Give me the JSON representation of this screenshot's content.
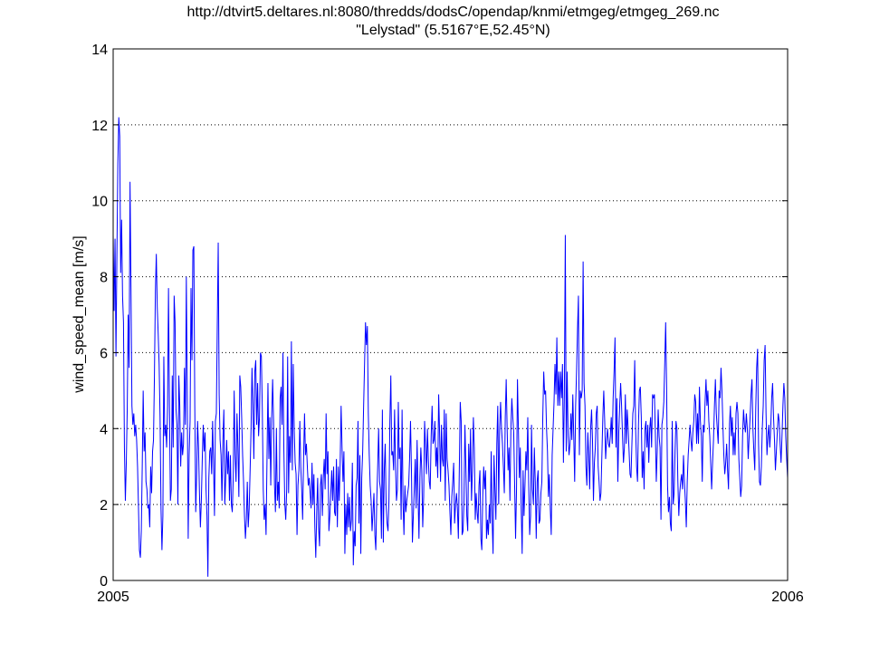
{
  "chart_data": {
    "type": "line",
    "title": "http://dtvirt5.deltares.nl:8080/thredds/dodsC/opendap/knmi/etmgeg/etmgeg_269.nc",
    "subtitle": "\"Lelystad\" (5.5167°E,52.45°N)",
    "xlabel": "",
    "ylabel": "wind_speed_mean [m/s]",
    "xlim": [
      "2005-01-01",
      "2006-01-01"
    ],
    "xticks": [
      "2005",
      "2006"
    ],
    "ylim": [
      0,
      14
    ],
    "yticks": [
      "0",
      "2",
      "4",
      "6",
      "8",
      "10",
      "12",
      "14"
    ],
    "grid": "y-dotted",
    "series_color": "#0000ff",
    "series": [
      {
        "x_start": "2005-01-01",
        "x_step": "1 day",
        "values": [
          9.1,
          7.1,
          9.0,
          5.9,
          8.6,
          11.0,
          12.2,
          11.7,
          8.1,
          9.5,
          7.5,
          6.8,
          3.5,
          2.1,
          3.1,
          4.5,
          7.0,
          5.6,
          10.5,
          7.7,
          4.6,
          4.1,
          4.4,
          3.8,
          4.1,
          3.7,
          3.0,
          1.9,
          0.8,
          0.6,
          1.3,
          3.0,
          5.0,
          3.4,
          3.9,
          2.6,
          2.4,
          1.9,
          2.0,
          1.4,
          3.0,
          2.3,
          3.4,
          3.7,
          5.4,
          7.6,
          8.6,
          7.2,
          6.5,
          5.7,
          4.3,
          1.9,
          0.8,
          1.7,
          5.9,
          3.8,
          4.1,
          3.5,
          4.6,
          7.7,
          4.6,
          2.1,
          2.4,
          5.4,
          3.5,
          7.5,
          6.8,
          4.5,
          4.1,
          2.0,
          5.4,
          4.6,
          3.0,
          3.9,
          3.3,
          3.6,
          5.6,
          4.1,
          8.0,
          4.8,
          1.1,
          3.3,
          4.2,
          7.7,
          5.8,
          8.7,
          8.8,
          4.6,
          1.8,
          2.8,
          4.2,
          3.5,
          2.3,
          1.4,
          2.1,
          3.2,
          4.1,
          3.4,
          3.9,
          2.4,
          1.7,
          0.1,
          2.7,
          3.4,
          3.5,
          2.8,
          4.2,
          3.1,
          1.7,
          4.2,
          4.4,
          6.7,
          8.9,
          4.9,
          3.7,
          3.3,
          2.1,
          3.7,
          4.5,
          2.0,
          2.7,
          3.7,
          2.8,
          3.4,
          2.1,
          3.3,
          2.0,
          1.8,
          2.7,
          5.0,
          3.3,
          2.6,
          4.4,
          3.5,
          2.2,
          5.4,
          5.1,
          4.3,
          3.3,
          2.6,
          1.7,
          1.1,
          1.6,
          2.6,
          1.4,
          1.9,
          2.9,
          4.0,
          5.6,
          4.6,
          3.2,
          5.5,
          5.8,
          4.1,
          5.2,
          3.8,
          4.3,
          6.0,
          5.9,
          4.5,
          2.4,
          1.6,
          2.0,
          1.2,
          3.2,
          5.2,
          3.2,
          4.3,
          2.5,
          4.3,
          5.3,
          4.2,
          2.5,
          1.8,
          4.0,
          2.1,
          2.6,
          1.9,
          4.8,
          5.1,
          4.1,
          6.0,
          3.4,
          2.0,
          1.6,
          2.4,
          5.9,
          2.3,
          3.8,
          3.1,
          6.3,
          2.9,
          5.7,
          4.0,
          3.1,
          2.8,
          1.2,
          2.5,
          2.9,
          4.2,
          3.0,
          2.4,
          1.6,
          3.2,
          4.4,
          3.3,
          3.6,
          3.0,
          2.5,
          2.7,
          2.3,
          1.9,
          3.1,
          2.0,
          2.8,
          1.4,
          0.6,
          1.8,
          2.7,
          1.4,
          0.9,
          2.5,
          2.8,
          1.7,
          2.7,
          3.2,
          2.4,
          4.4,
          2.8,
          3.4,
          1.3,
          1.7,
          2.3,
          2.9,
          2.1,
          3.0,
          1.8,
          1.7,
          3.2,
          1.4,
          3.0,
          2.1,
          3.1,
          4.6,
          3.5,
          2.6,
          3.4,
          0.7,
          2.0,
          1.2,
          2.3,
          1.4,
          2.2,
          1.3,
          1.6,
          3.1,
          0.4,
          1.3,
          0.9,
          2.5,
          2.7,
          4.2,
          1.5,
          3.3,
          0.7,
          2.7,
          3.4,
          4.6,
          5.7,
          6.8,
          6.2,
          6.7,
          4.4,
          3.3,
          2.5,
          2.1,
          1.3,
          1.8,
          2.3,
          1.2,
          0.8,
          2.1,
          3.0,
          4.0,
          2.6,
          2.4,
          1.1,
          4.5,
          1.0,
          2.9,
          3.6,
          2.0,
          1.5,
          1.3,
          2.1,
          4.2,
          5.4,
          3.3,
          3.4,
          2.9,
          4.5,
          3.0,
          2.1,
          2.4,
          4.7,
          3.2,
          3.5,
          1.6,
          4.5,
          2.1,
          1.2,
          2.5,
          1.8,
          2.1,
          2.3,
          2.5,
          3.2,
          4.2,
          2.9,
          1.0,
          1.7,
          2.4,
          3.2,
          1.9,
          3.7,
          2.3,
          1.1,
          2.7,
          3.5,
          2.9,
          1.4,
          2.2,
          4.2,
          3.5,
          2.8,
          4.0,
          3.2,
          2.6,
          2.4,
          3.8,
          4.6,
          3.6,
          3.7,
          4.2,
          3.0,
          3.5,
          2.7,
          4.9,
          3.9,
          2.6,
          4.1,
          3.2,
          3.0,
          4.5,
          2.1,
          4.4,
          3.2,
          2.9,
          2.5,
          1.8,
          1.2,
          2.2,
          2.6,
          3.1,
          1.5,
          2.0,
          2.3,
          1.9,
          1.1,
          2.9,
          4.7,
          4.2,
          1.2,
          1.3,
          2.1,
          4.1,
          3.0,
          1.7,
          1.3,
          3.6,
          2.6,
          4.0,
          2.1,
          2.9,
          4.3,
          3.5,
          1.6,
          2.3,
          1.8,
          1.5,
          2.5,
          2.9,
          1.1,
          0.8,
          2.2,
          3.0,
          2.4,
          2.9,
          1.1,
          1.6,
          1.2,
          2.0,
          1.5,
          3.4,
          1.6,
          0.7,
          3.3,
          2.4,
          1.6,
          3.6,
          4.6,
          2.0,
          4.0,
          4.7,
          4.0,
          3.6,
          3.0,
          2.3,
          4.3,
          5.3,
          4.0,
          2.9,
          3.5,
          2.1,
          4.0,
          4.8,
          4.3,
          3.9,
          2.5,
          1.1,
          2.4,
          5.3,
          4.0,
          2.7,
          3.5,
          1.9,
          0.7,
          2.9,
          1.7,
          2.5,
          3.4,
          2.9,
          4.3,
          2.5,
          1.2,
          1.7,
          4.1,
          2.4,
          2.0,
          3.5,
          2.6,
          1.1,
          2.6,
          2.9,
          1.5,
          1.6,
          2.3,
          2.6,
          4.3,
          5.5,
          4.9,
          5.0,
          4.0,
          3.4,
          2.2,
          2.8,
          1.9,
          1.2,
          3.3,
          4.0,
          4.7,
          5.7,
          4.9,
          6.4,
          4.6,
          5.5,
          4.6,
          5.5,
          4.8,
          5.7,
          3.1,
          4.9,
          9.1,
          3.4,
          5.5,
          3.8,
          3.3,
          3.6,
          4.4,
          3.7,
          4.9,
          3.8,
          2.6,
          4.6,
          5.5,
          6.6,
          7.5,
          3.3,
          5.0,
          4.8,
          5.0,
          8.4,
          5.2,
          4.6,
          3.0,
          2.5,
          3.9,
          3.3,
          2.4,
          4.0,
          4.5,
          3.7,
          2.1,
          3.1,
          3.5,
          4.4,
          4.6,
          3.0,
          2.6,
          2.1,
          2.3,
          3.3,
          4.3,
          5.0,
          4.2,
          3.2,
          3.7,
          4.0,
          3.6,
          3.5,
          3.8,
          4.3,
          3.6,
          4.8,
          5.5,
          6.4,
          3.5,
          4.8,
          2.6,
          3.9,
          4.6,
          5.2,
          4.6,
          3.8,
          3.1,
          3.5,
          4.9,
          3.6,
          4.5,
          4.0,
          3.4,
          2.8,
          2.7,
          3.6,
          4.4,
          4.6,
          5.8,
          4.0,
          3.0,
          2.6,
          4.1,
          5.0,
          5.1,
          4.3,
          2.7,
          3.4,
          2.4,
          4.0,
          4.2,
          3.5,
          4.1,
          3.1,
          4.0,
          4.3,
          3.5,
          4.9,
          4.8,
          4.9,
          3.9,
          2.6,
          3.4,
          4.5,
          3.8,
          3.5,
          1.6,
          4.1,
          4.3,
          4.7,
          5.7,
          6.8,
          5.1,
          2.5,
          1.8,
          2.2,
          1.5,
          1.3,
          4.2,
          2.0,
          2.3,
          3.4,
          4.2,
          4.0,
          2.6,
          1.7,
          2.3,
          2.6,
          2.8,
          2.4,
          3.3,
          2.6,
          2.1,
          1.4,
          2.6,
          3.3,
          3.7,
          4.1,
          3.7,
          3.4,
          3.9,
          4.2,
          4.9,
          4.7,
          3.6,
          4.4,
          3.6,
          5.1,
          4.2,
          3.8,
          2.6,
          4.1,
          3.9,
          4.7,
          5.3,
          4.6,
          5.0,
          4.2,
          3.8,
          3.1,
          2.4,
          3.1,
          3.7,
          4.6,
          5.3,
          4.4,
          4.0,
          3.6,
          5.0,
          4.8,
          5.6,
          5.0,
          4.1,
          3.3,
          2.8,
          3.1,
          3.6,
          2.9,
          2.4,
          4.1,
          4.6,
          3.8,
          4.3,
          3.3,
          3.9,
          3.3,
          4.4,
          4.7,
          4.4,
          3.2,
          2.7,
          2.2,
          2.5,
          3.8,
          4.5,
          4.1,
          3.9,
          4.4,
          4.0,
          3.2,
          3.8,
          4.3,
          4.9,
          5.3,
          4.0,
          3.4,
          2.9,
          4.5,
          5.6,
          6.1,
          3.6,
          2.6,
          2.5,
          3.0,
          4.0,
          4.6,
          5.8,
          6.2,
          4.4,
          3.3,
          3.8,
          4.1,
          3.5,
          4.0,
          4.8,
          5.2,
          4.3,
          3.7,
          2.9,
          3.4,
          3.9,
          4.4,
          4.2,
          3.6,
          3.1,
          3.8,
          4.6,
          5.2,
          4.8,
          3.8,
          3.2,
          2.7
        ]
      }
    ]
  }
}
